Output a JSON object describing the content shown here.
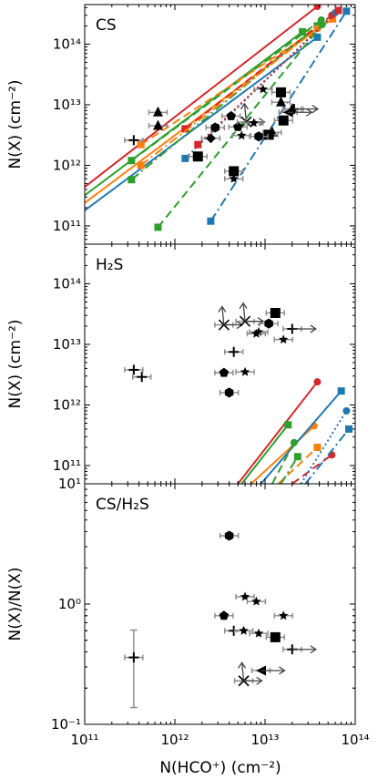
{
  "chart_data": [
    {
      "type": "scatter",
      "title": "CS",
      "ylabel": "N(X) (cm⁻²)",
      "xscale": "log",
      "yscale": "log",
      "xlim": [
        100000000000.0,
        100000000000000.0
      ],
      "ylim": [
        50000000000.0,
        450000000000000.0
      ],
      "x_ticks": [
        "10¹¹",
        "10¹²",
        "10¹³",
        "10¹⁴"
      ],
      "y_ticks": [
        "10¹¹",
        "10¹²",
        "10¹³",
        "10¹⁴"
      ],
      "observations": [
        {
          "marker": "plus",
          "x": 350000000000.0,
          "y": 2600000000000.0
        },
        {
          "marker": "triangle",
          "x": 650000000000.0,
          "y": 7500000000000.0
        },
        {
          "marker": "triangle",
          "x": 650000000000.0,
          "y": 4500000000000.0
        },
        {
          "marker": "square",
          "x": 1800000000000.0,
          "y": 1400000000000.0
        },
        {
          "marker": "hexagon",
          "x": 2800000000000.0,
          "y": 4200000000000.0
        },
        {
          "marker": "diamond",
          "x": 2500000000000.0,
          "y": 2800000000000.0
        },
        {
          "marker": "pentagon",
          "x": 4200000000000.0,
          "y": 6500000000000.0
        },
        {
          "marker": "pentagon",
          "x": 5000000000000.0,
          "y": 4300000000000.0
        },
        {
          "marker": "star",
          "x": 5500000000000.0,
          "y": 3100000000000.0
        },
        {
          "marker": "cross",
          "x": 6200000000000.0,
          "y": 5200000000000.0
        },
        {
          "marker": "star",
          "x": 7500000000000.0,
          "y": 5000000000000.0
        },
        {
          "marker": "star",
          "x": 9500000000000.0,
          "y": 18000000000000.0
        },
        {
          "marker": "triangle",
          "x": 12000000000000.0,
          "y": 3500000000000.0
        },
        {
          "marker": "triangle",
          "x": 20000000000000.0,
          "y": 8500000000000.0
        },
        {
          "marker": "square",
          "x": 11000000000000.0,
          "y": 3200000000000.0
        },
        {
          "marker": "square",
          "x": 16000000000000.0,
          "y": 5500000000000.0
        },
        {
          "marker": "triangle",
          "x": 15000000000000.0,
          "y": 11000000000000.0
        },
        {
          "marker": "left-triangle",
          "x": 18000000000000.0,
          "y": 7500000000000.0
        },
        {
          "marker": "square",
          "x": 15000000000000.0,
          "y": 16000000000000.0
        },
        {
          "marker": "plus",
          "x": 21000000000000.0,
          "y": 8500000000000.0
        },
        {
          "marker": "square",
          "x": 4500000000000.0,
          "y": 800000000000.0
        },
        {
          "marker": "star",
          "x": 4500000000000.0,
          "y": 600000000000.0
        },
        {
          "marker": "hexagon",
          "x": 8500000000000.0,
          "y": 3000000000000.0
        }
      ],
      "models": [
        {
          "color": "#d62728",
          "style": "solid",
          "points": [
            [
              100000000000.0,
              440000000000.0
            ],
            [
              38000000000000.0,
              420000000000000.0
            ]
          ]
        },
        {
          "color": "#2ca02c",
          "style": "solid",
          "points": [
            [
              100000000000.0,
              320000000000.0
            ],
            [
              26000000000000.0,
              160000000000000.0
            ]
          ]
        },
        {
          "color": "#ff7f0e",
          "style": "solid",
          "points": [
            [
              100000000000.0,
              240000000000.0
            ],
            [
              32000000000000.0,
              150000000000000.0
            ]
          ]
        },
        {
          "color": "#1f77b4",
          "style": "solid",
          "points": [
            [
              100000000000.0,
              180000000000.0
            ],
            [
              38000000000000.0,
              130000000000000.0
            ]
          ]
        },
        {
          "color": "#2ca02c",
          "style": "dashed",
          "points": [
            [
              330000000000.0,
              1200000000000.0
            ],
            [
              42000000000000.0,
              250000000000000.0
            ]
          ]
        },
        {
          "color": "#ff7f0e",
          "style": "dashed",
          "points": [
            [
              420000000000.0,
              2200000000000.0
            ],
            [
              56000000000000.0,
              260000000000000.0
            ]
          ]
        },
        {
          "color": "#d62728",
          "style": "dashed",
          "points": [
            [
              1300000000000.0,
              4000000000000.0
            ],
            [
              55000000000000.0,
              300000000000000.0
            ]
          ]
        },
        {
          "color": "#2ca02c",
          "style": "dashdot",
          "points": [
            [
              330000000000.0,
              580000000000.0
            ],
            [
              38000000000000.0,
              200000000000000.0
            ]
          ]
        },
        {
          "color": "#ff7f0e",
          "style": "dashdot",
          "points": [
            [
              420000000000.0,
              1000000000000.0
            ],
            [
              38000000000000.0,
              180000000000000.0
            ]
          ]
        },
        {
          "color": "#1f77b4",
          "style": "dashdot",
          "points": [
            [
              2500000000000.0,
              120000000000.0
            ],
            [
              80000000000000.0,
              350000000000000.0
            ]
          ]
        },
        {
          "color": "#1f77b4",
          "style": "dotted",
          "points": [
            [
              1300000000000.0,
              1300000000000.0
            ],
            [
              60000000000000.0,
              330000000000000.0
            ]
          ]
        },
        {
          "color": "#d62728",
          "style": "dotted",
          "points": [
            [
              1800000000000.0,
              2200000000000.0
            ],
            [
              65000000000000.0,
              360000000000000.0
            ]
          ]
        },
        {
          "color": "#2ca02c",
          "style": "dashed",
          "points": [
            [
              650000000000.0,
              95000000000.0
            ],
            [
              43000000000000.0,
              210000000000000.0
            ]
          ]
        }
      ]
    },
    {
      "type": "scatter",
      "title": "H₂S",
      "ylabel": "N(X) (cm⁻²)",
      "xscale": "log",
      "yscale": "log",
      "xlim": [
        100000000000.0,
        100000000000000.0
      ],
      "ylim": [
        50000000000.0,
        450000000000000.0
      ],
      "x_ticks": [
        "10¹¹",
        "10¹²",
        "10¹³",
        "10¹⁴"
      ],
      "y_ticks": [
        "10¹¹",
        "10¹²",
        "10¹³",
        "10¹⁴"
      ],
      "observations": [
        {
          "marker": "plus",
          "x": 350000000000.0,
          "y": 3800000000000.0
        },
        {
          "marker": "plus",
          "x": 430000000000.0,
          "y": 2900000000000.0
        },
        {
          "marker": "cross",
          "x": 3500000000000.0,
          "y": 21000000000000.0
        },
        {
          "marker": "cross",
          "x": 6000000000000.0,
          "y": 24000000000000.0
        },
        {
          "marker": "pentagon",
          "x": 3500000000000.0,
          "y": 3400000000000.0
        },
        {
          "marker": "hexagon",
          "x": 4000000000000.0,
          "y": 1600000000000.0
        },
        {
          "marker": "plus",
          "x": 4500000000000.0,
          "y": 7500000000000.0
        },
        {
          "marker": "star",
          "x": 6000000000000.0,
          "y": 3500000000000.0
        },
        {
          "marker": "star",
          "x": 8500000000000.0,
          "y": 16000000000000.0
        },
        {
          "marker": "star",
          "x": 8000000000000.0,
          "y": 15000000000000.0
        },
        {
          "marker": "hexagon",
          "x": 11000000000000.0,
          "y": 22000000000000.0
        },
        {
          "marker": "square",
          "x": 13000000000000.0,
          "y": 33000000000000.0
        },
        {
          "marker": "star",
          "x": 16000000000000.0,
          "y": 12000000000000.0
        },
        {
          "marker": "plus",
          "x": 20000000000000.0,
          "y": 18000000000000.0
        }
      ],
      "models": [
        {
          "color": "#d62728",
          "style": "solid",
          "points": [
            [
              5000000000000.0,
              50000000000.0
            ],
            [
              38000000000000.0,
              2400000000000.0
            ]
          ]
        },
        {
          "color": "#2ca02c",
          "style": "solid",
          "points": [
            [
              5500000000000.0,
              50000000000.0
            ],
            [
              18000000000000.0,
              470000000000.0
            ]
          ]
        },
        {
          "color": "#ff7f0e",
          "style": "solid",
          "points": [
            [
              7000000000000.0,
              50000000000.0
            ],
            [
              35000000000000.0,
              450000000000.0
            ]
          ]
        },
        {
          "color": "#1f77b4",
          "style": "solid",
          "points": [
            [
              9000000000000.0,
              50000000000.0
            ],
            [
              70000000000000.0,
              1700000000000.0
            ]
          ]
        },
        {
          "color": "#2ca02c",
          "style": "dashed",
          "points": [
            [
              12000000000000.0,
              50000000000.0
            ],
            [
              21000000000000.0,
              240000000000.0
            ]
          ]
        },
        {
          "color": "#ff7f0e",
          "style": "dashed",
          "points": [
            [
              14000000000000.0,
              50000000000.0
            ],
            [
              38000000000000.0,
              200000000000.0
            ]
          ]
        },
        {
          "color": "#d62728",
          "style": "dashed",
          "points": [
            [
              20000000000000.0,
              50000000000.0
            ],
            [
              55000000000000.0,
              150000000000.0
            ]
          ]
        },
        {
          "color": "#1f77b4",
          "style": "dashdot",
          "points": [
            [
              28000000000000.0,
              50000000000.0
            ],
            [
              85000000000000.0,
              400000000000.0
            ]
          ]
        },
        {
          "color": "#1f77b4",
          "style": "dotted",
          "points": [
            [
              25000000000000.0,
              50000000000.0
            ],
            [
              80000000000000.0,
              800000000000.0
            ]
          ]
        },
        {
          "color": "#2ca02c",
          "style": "dashdot",
          "points": [
            [
              15000000000000.0,
              50000000000.0
            ],
            [
              23000000000000.0,
              140000000000.0
            ]
          ]
        }
      ]
    },
    {
      "type": "scatter",
      "title": "CS/H₂S",
      "ylabel": "N(X)/N(X)",
      "xlabel": "N(HCO⁺) (cm⁻²)",
      "xscale": "log",
      "yscale": "log",
      "xlim": [
        100000000000.0,
        100000000000000.0
      ],
      "ylim": [
        0.1,
        10
      ],
      "x_ticks": [
        "10¹¹",
        "10¹²",
        "10¹³",
        "10¹⁴"
      ],
      "y_ticks": [
        "10⁻¹",
        "10⁰",
        "10¹"
      ],
      "observations": [
        {
          "marker": "plus",
          "x": 350000000000.0,
          "y": 0.36
        },
        {
          "marker": "hexagon",
          "x": 4000000000000.0,
          "y": 3.7
        },
        {
          "marker": "pentagon",
          "x": 3500000000000.0,
          "y": 0.8
        },
        {
          "marker": "plus",
          "x": 4500000000000.0,
          "y": 0.6
        },
        {
          "marker": "star",
          "x": 5800000000000.0,
          "y": 0.6
        },
        {
          "marker": "star",
          "x": 6000000000000.0,
          "y": 1.15
        },
        {
          "marker": "star",
          "x": 8000000000000.0,
          "y": 1.05
        },
        {
          "marker": "star",
          "x": 8500000000000.0,
          "y": 0.57
        },
        {
          "marker": "square",
          "x": 13000000000000.0,
          "y": 0.53
        },
        {
          "marker": "star",
          "x": 16000000000000.0,
          "y": 0.8
        },
        {
          "marker": "plus",
          "x": 20000000000000.0,
          "y": 0.42
        },
        {
          "marker": "left-triangle",
          "x": 9000000000000.0,
          "y": 0.28
        },
        {
          "marker": "cross",
          "x": 5800000000000.0,
          "y": 0.23
        }
      ],
      "models": []
    }
  ]
}
